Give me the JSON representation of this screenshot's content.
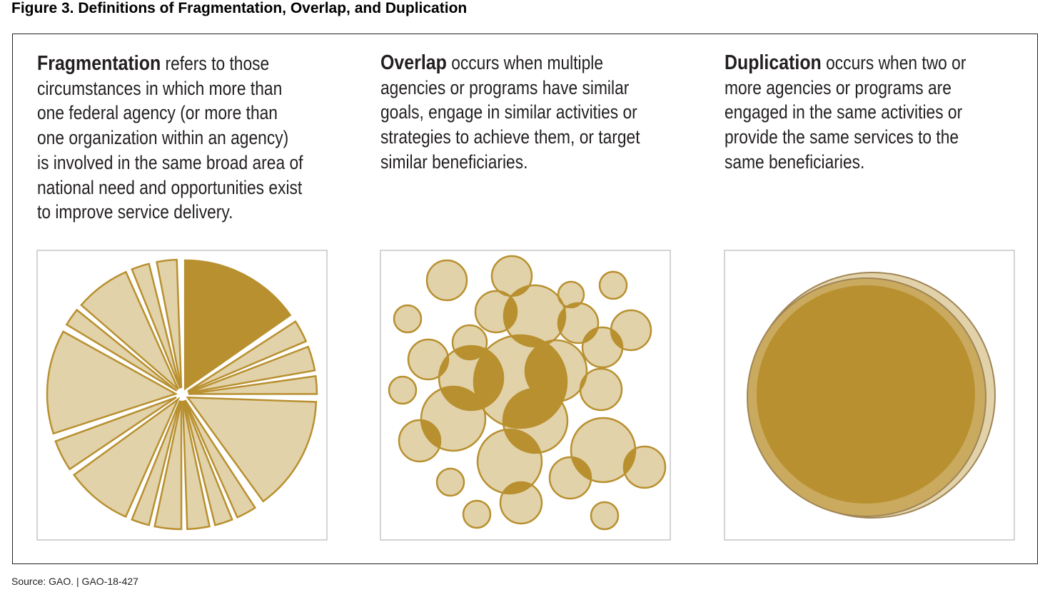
{
  "figure_title": "Figure 3. Definitions of Fragmentation, Overlap, and Duplication",
  "columns": [
    {
      "term": "Fragmentation",
      "lines": [
        " refers to those",
        "circumstances in which more than",
        "one federal agency (or more than",
        "one organization within an agency)",
        "is involved in the same broad area of",
        "national need and opportunities exist",
        "to improve service delivery."
      ]
    },
    {
      "term": "Overlap",
      "lines": [
        " occurs when multiple",
        "agencies or programs have similar",
        "goals, engage in similar activities or",
        "strategies to achieve them, or target",
        "similar beneficiaries."
      ]
    },
    {
      "term": "Duplication",
      "lines": [
        " occurs when two or",
        "more agencies or programs are",
        "engaged in the same activities or",
        "provide the same services to the",
        "same beneficiaries."
      ]
    }
  ],
  "source": "Source: GAO.  |  GAO-18-427",
  "colors": {
    "dark": "#b8902f",
    "light": "#e2d2aa",
    "mid": "#c9aa5f",
    "outline": "#a08555"
  }
}
